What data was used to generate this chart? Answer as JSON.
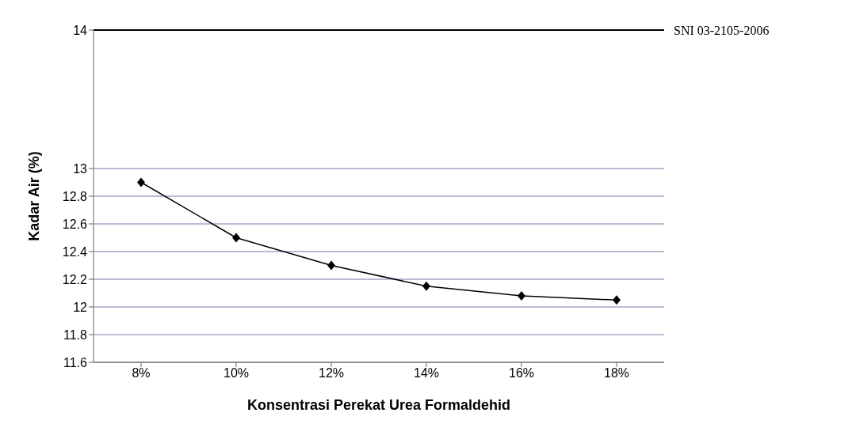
{
  "chart_data": {
    "type": "line",
    "xlabel": "Konsentrasi Perekat Urea Formaldehid",
    "ylabel": "Kadar Air (%)",
    "categories": [
      "8%",
      "10%",
      "12%",
      "14%",
      "16%",
      "18%"
    ],
    "series": [
      {
        "color": "#000000",
        "values": [
          12.9,
          12.5,
          12.3,
          12.15,
          12.08,
          12.05
        ]
      }
    ],
    "ylim": [
      11.6,
      14
    ],
    "yticks": [
      11.6,
      11.8,
      12,
      12.2,
      12.4,
      12.6,
      12.8,
      13,
      14
    ],
    "grid": "y",
    "marker": "diamond",
    "ref_lines": [
      {
        "axis": "y",
        "value": 14,
        "label": "SNI 03-2105-2006",
        "color": "#000000"
      }
    ]
  }
}
